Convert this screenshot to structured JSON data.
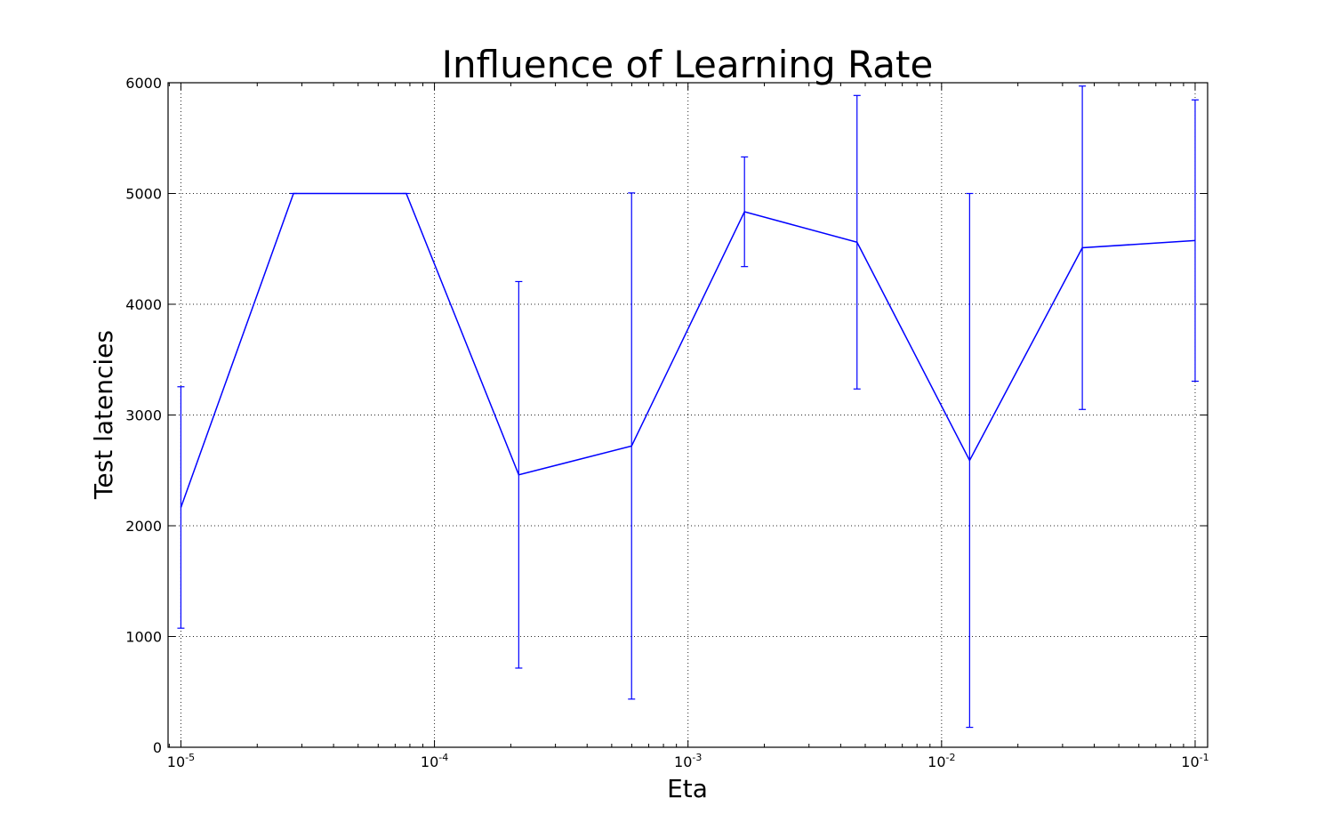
{
  "chart_data": {
    "type": "line",
    "title": "Influence of Learning Rate",
    "xlabel": "Eta",
    "ylabel": "Test latencies",
    "x_scale": "log",
    "xlim": [
      8.9e-06,
      0.112
    ],
    "ylim": [
      0,
      6000
    ],
    "grid": true,
    "line_color": "#0000ff",
    "x_ticks": [
      {
        "value": 1e-05,
        "base": "10",
        "exp": "-5"
      },
      {
        "value": 0.0001,
        "base": "10",
        "exp": "-4"
      },
      {
        "value": 0.001,
        "base": "10",
        "exp": "-3"
      },
      {
        "value": 0.01,
        "base": "10",
        "exp": "-2"
      },
      {
        "value": 0.1,
        "base": "10",
        "exp": "-1"
      }
    ],
    "y_ticks": [
      0,
      1000,
      2000,
      3000,
      4000,
      5000,
      6000
    ],
    "series": [
      {
        "x": [
          1e-05,
          2.78e-05,
          7.74e-05,
          0.000215,
          0.000599,
          0.00167,
          0.00464,
          0.0129,
          0.0359,
          0.1
        ],
        "y": [
          2165,
          5000,
          5000,
          2460,
          2720,
          4835,
          4560,
          2590,
          4510,
          4575
        ],
        "error": [
          1090,
          0,
          0,
          1745,
          2285,
          495,
          1325,
          2410,
          1460,
          1270
        ]
      }
    ]
  }
}
